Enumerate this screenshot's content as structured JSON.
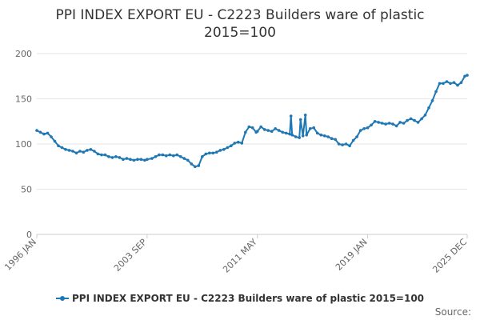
{
  "chart_data": {
    "type": "line",
    "title_lines": [
      "PPI INDEX EXPORT EU - C2223 Builders ware of plastic",
      "2015=100"
    ],
    "y_ticks": [
      "0",
      "50",
      "100",
      "150",
      "200"
    ],
    "x_ticks": [
      "1996 JAN",
      "2003 SEP",
      "2011 MAY",
      "2019 JAN",
      "2025 DEC"
    ],
    "ylim": [
      0,
      200
    ],
    "grid": true,
    "legend_position": "bottom-center",
    "series": [
      {
        "name": "PPI INDEX EXPORT EU - C2223 Builders ware of plastic 2015=100",
        "color": "#1f77b4",
        "points": [
          [
            "1996-01",
            115
          ],
          [
            "1996-04",
            113
          ],
          [
            "1996-07",
            111
          ],
          [
            "1996-10",
            112
          ],
          [
            "1997-01",
            108
          ],
          [
            "1997-04",
            103
          ],
          [
            "1997-07",
            98
          ],
          [
            "1997-10",
            96
          ],
          [
            "1998-01",
            94
          ],
          [
            "1998-04",
            93
          ],
          [
            "1998-07",
            92
          ],
          [
            "1998-10",
            90
          ],
          [
            "1999-01",
            92
          ],
          [
            "1999-04",
            91
          ],
          [
            "1999-07",
            93
          ],
          [
            "1999-10",
            94
          ],
          [
            "2000-01",
            92
          ],
          [
            "2000-04",
            89
          ],
          [
            "2000-07",
            88
          ],
          [
            "2000-10",
            88
          ],
          [
            "2001-01",
            86
          ],
          [
            "2001-04",
            85
          ],
          [
            "2001-07",
            86
          ],
          [
            "2001-10",
            85
          ],
          [
            "2002-01",
            83
          ],
          [
            "2002-04",
            84
          ],
          [
            "2002-07",
            83
          ],
          [
            "2002-10",
            82
          ],
          [
            "2003-01",
            83
          ],
          [
            "2003-04",
            83
          ],
          [
            "2003-07",
            82
          ],
          [
            "2003-09",
            83
          ],
          [
            "2004-01",
            84
          ],
          [
            "2004-04",
            86
          ],
          [
            "2004-07",
            88
          ],
          [
            "2004-10",
            88
          ],
          [
            "2005-01",
            87
          ],
          [
            "2005-04",
            88
          ],
          [
            "2005-07",
            87
          ],
          [
            "2005-10",
            88
          ],
          [
            "2006-01",
            86
          ],
          [
            "2006-04",
            84
          ],
          [
            "2006-07",
            82
          ],
          [
            "2006-10",
            78
          ],
          [
            "2007-01",
            75
          ],
          [
            "2007-04",
            76
          ],
          [
            "2007-07",
            86
          ],
          [
            "2007-10",
            89
          ],
          [
            "2008-01",
            90
          ],
          [
            "2008-04",
            90
          ],
          [
            "2008-07",
            91
          ],
          [
            "2008-10",
            93
          ],
          [
            "2009-01",
            94
          ],
          [
            "2009-04",
            96
          ],
          [
            "2009-07",
            98
          ],
          [
            "2009-10",
            101
          ],
          [
            "2010-01",
            102
          ],
          [
            "2010-04",
            101
          ],
          [
            "2010-07",
            113
          ],
          [
            "2010-10",
            119
          ],
          [
            "2011-01",
            118
          ],
          [
            "2011-04",
            113
          ],
          [
            "2011-05",
            114
          ],
          [
            "2011-08",
            119
          ],
          [
            "2011-11",
            116
          ],
          [
            "2012-02",
            115
          ],
          [
            "2012-05",
            114
          ],
          [
            "2012-08",
            117
          ],
          [
            "2012-11",
            115
          ],
          [
            "2013-02",
            113
          ],
          [
            "2013-05",
            112
          ],
          [
            "2013-08",
            111
          ],
          [
            "2013-09",
            131
          ],
          [
            "2013-10",
            110
          ],
          [
            "2014-01",
            108
          ],
          [
            "2014-04",
            107
          ],
          [
            "2014-05",
            127
          ],
          [
            "2014-07",
            109
          ],
          [
            "2014-09",
            132
          ],
          [
            "2014-10",
            110
          ],
          [
            "2015-01",
            117
          ],
          [
            "2015-04",
            118
          ],
          [
            "2015-07",
            112
          ],
          [
            "2015-10",
            110
          ],
          [
            "2016-01",
            109
          ],
          [
            "2016-04",
            108
          ],
          [
            "2016-07",
            106
          ],
          [
            "2016-10",
            105
          ],
          [
            "2017-01",
            100
          ],
          [
            "2017-04",
            99
          ],
          [
            "2017-07",
            100
          ],
          [
            "2017-10",
            98
          ],
          [
            "2018-01",
            104
          ],
          [
            "2018-04",
            108
          ],
          [
            "2018-07",
            115
          ],
          [
            "2018-10",
            117
          ],
          [
            "2019-01",
            118
          ],
          [
            "2019-04",
            121
          ],
          [
            "2019-07",
            125
          ],
          [
            "2019-10",
            124
          ],
          [
            "2020-01",
            123
          ],
          [
            "2020-04",
            122
          ],
          [
            "2020-07",
            123
          ],
          [
            "2020-10",
            122
          ],
          [
            "2021-01",
            120
          ],
          [
            "2021-04",
            124
          ],
          [
            "2021-07",
            123
          ],
          [
            "2021-10",
            126
          ],
          [
            "2022-01",
            128
          ],
          [
            "2022-04",
            126
          ],
          [
            "2022-07",
            124
          ],
          [
            "2022-10",
            128
          ],
          [
            "2023-01",
            132
          ],
          [
            "2023-04",
            140
          ],
          [
            "2023-07",
            148
          ],
          [
            "2023-10",
            158
          ],
          [
            "2024-01",
            167
          ],
          [
            "2024-04",
            167
          ],
          [
            "2024-07",
            169
          ],
          [
            "2024-10",
            167
          ],
          [
            "2025-01",
            168
          ],
          [
            "2025-04",
            165
          ],
          [
            "2025-07",
            168
          ],
          [
            "2025-10",
            175
          ],
          [
            "2025-12",
            176
          ]
        ]
      }
    ]
  },
  "source_label": "Source:"
}
